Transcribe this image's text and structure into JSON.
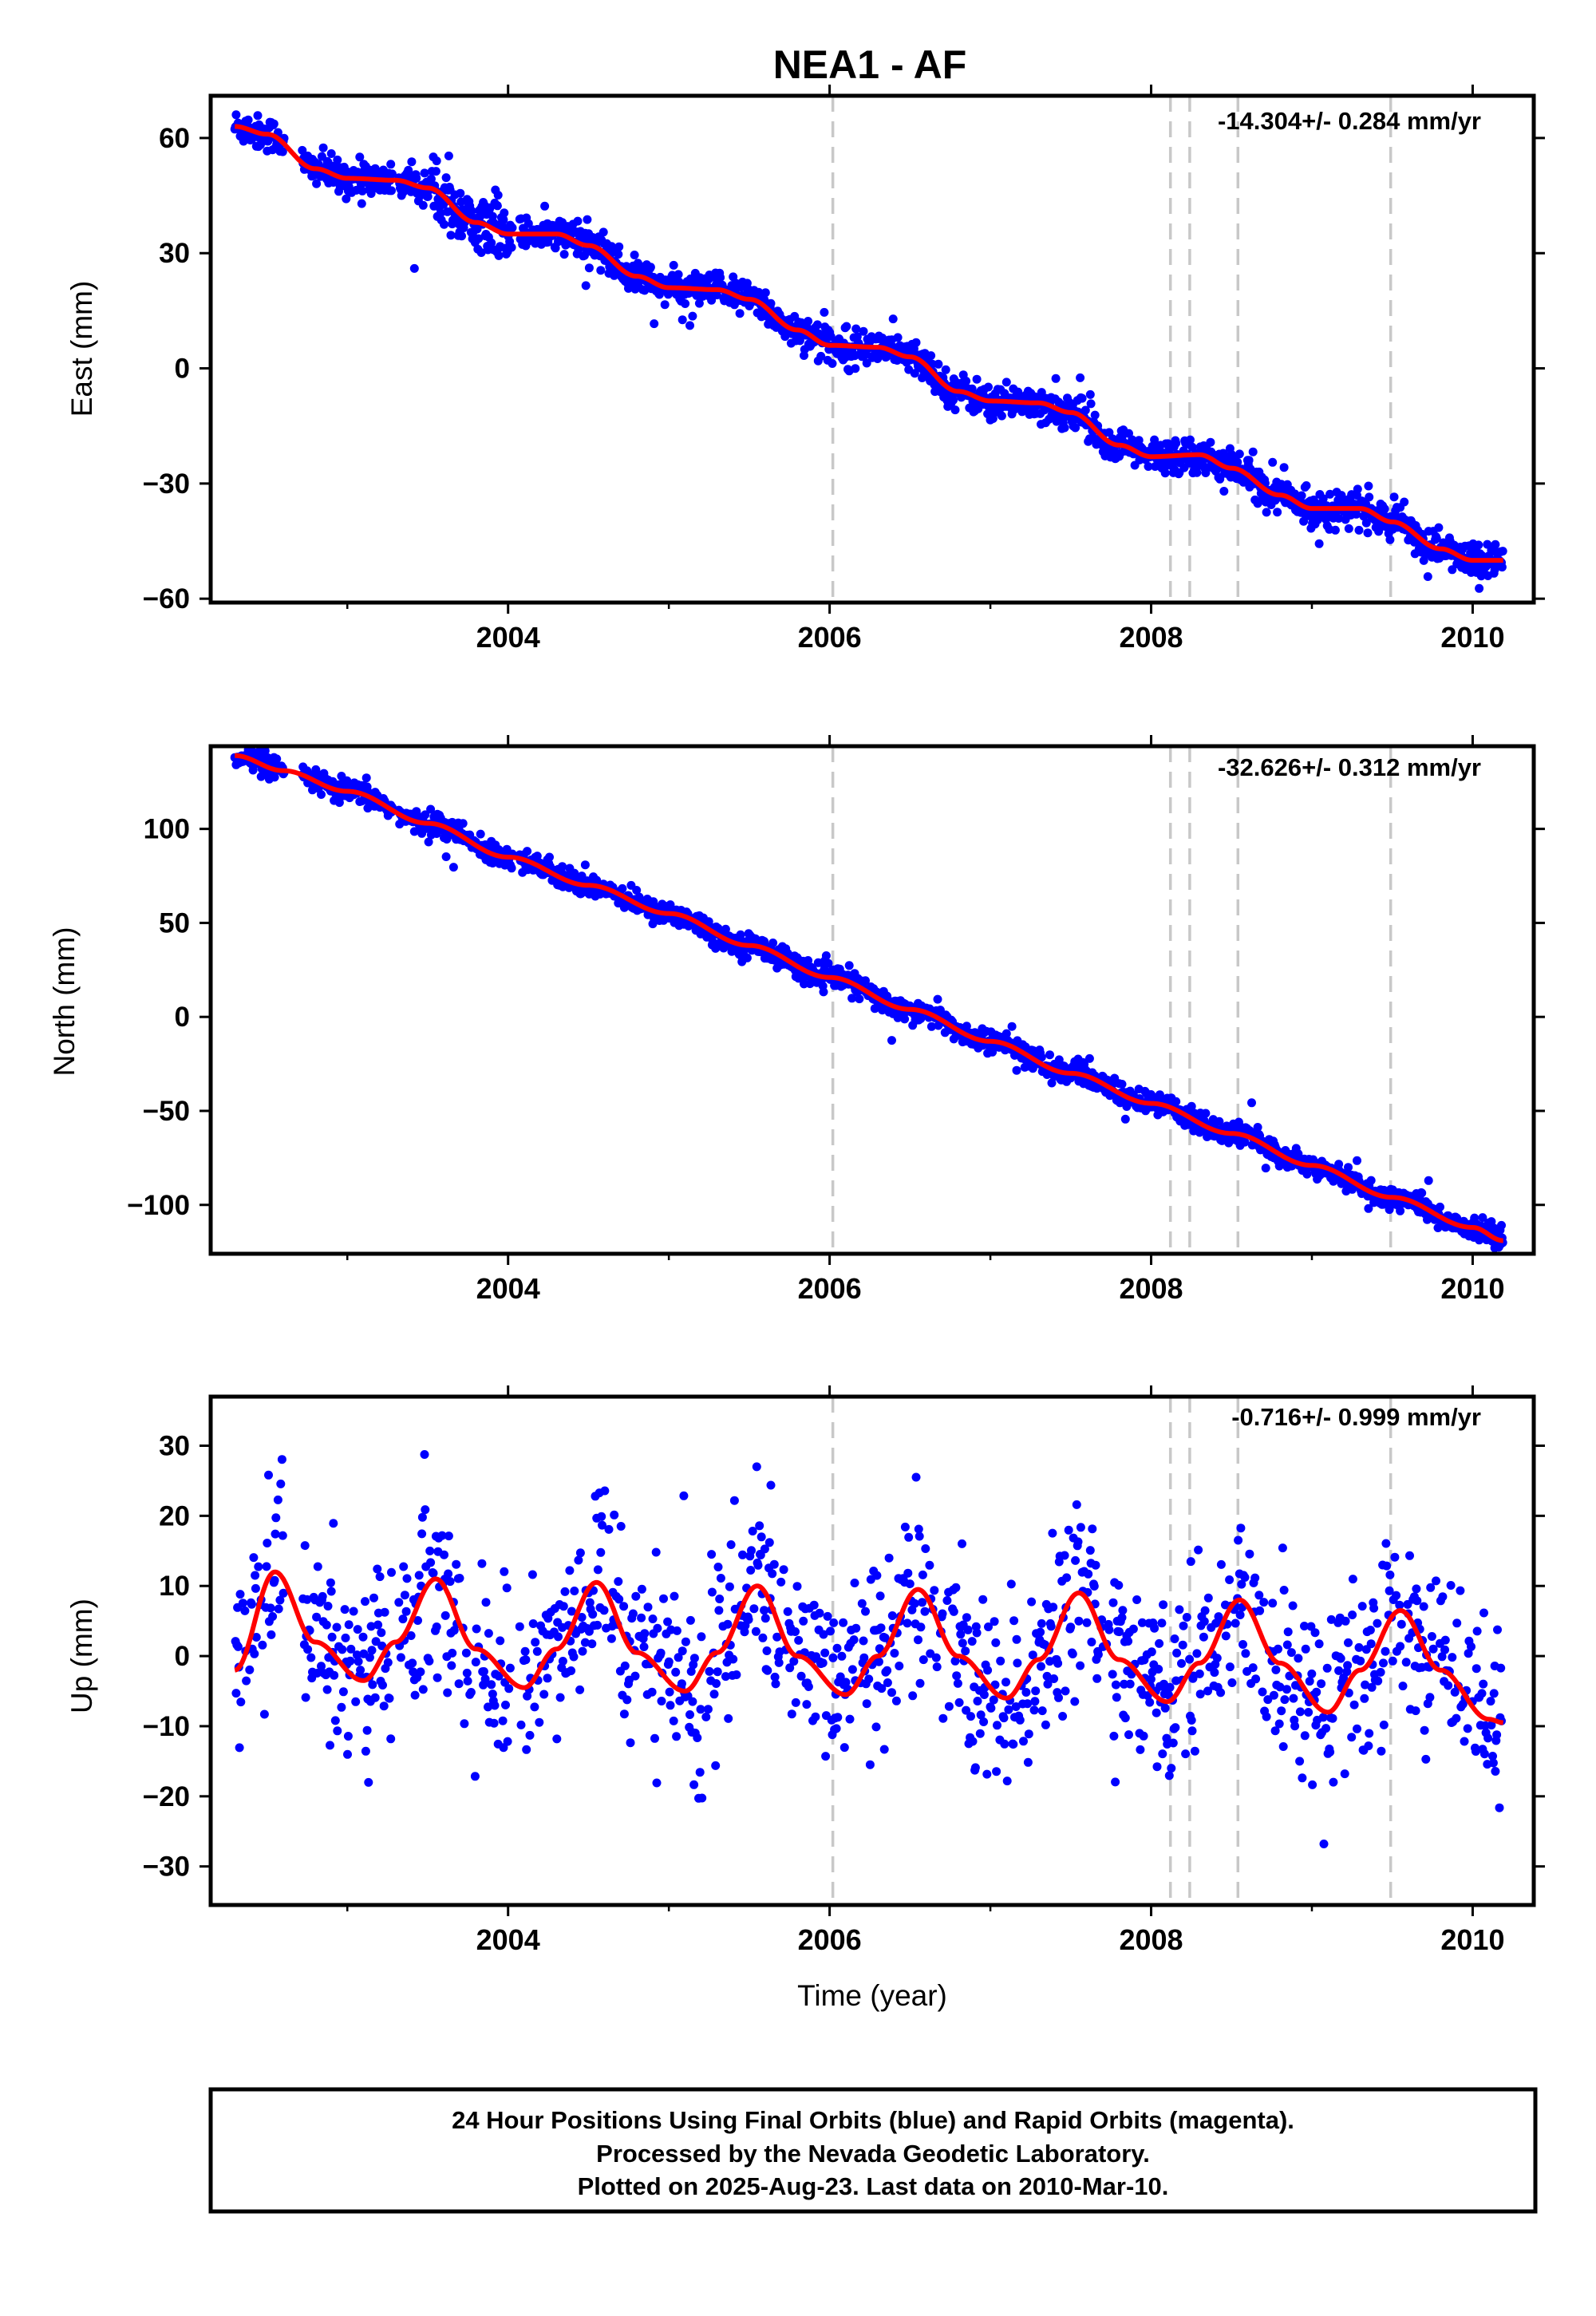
{
  "chart_data": {
    "type": "scatter",
    "title": "NEA1 - AF",
    "xlabel": "Time (year)",
    "xlim": [
      2002.15,
      2010.38
    ],
    "x_ticks": [
      "2004",
      "2006",
      "2008",
      "2010"
    ],
    "x_tick_values": [
      2004,
      2006,
      2008,
      2010
    ],
    "event_lines": [
      2006.02,
      2008.12,
      2008.24,
      2008.54,
      2009.49
    ],
    "colors": {
      "points": "#0000ff",
      "fit": "#ff0000",
      "event_lines": "#c8c8c8",
      "frame": "#000000"
    },
    "panels": [
      {
        "name": "east",
        "ylabel": "East (mm)",
        "rate_label": "-14.304+/- 0.284 mm/yr",
        "ylim": [
          -61,
          71
        ],
        "y_ticks": [
          "60",
          "30",
          "0",
          "−30",
          "−60"
        ],
        "y_tick_values": [
          60,
          30,
          0,
          -30,
          -60
        ],
        "noise": 2.2,
        "fit": {
          "x": [
            2002.3,
            2002.5,
            2002.8,
            2003.0,
            2003.3,
            2003.5,
            2003.8,
            2004.0,
            2004.3,
            2004.5,
            2004.8,
            2005.0,
            2005.3,
            2005.5,
            2005.8,
            2006.0,
            2006.3,
            2006.5,
            2006.8,
            2007.0,
            2007.3,
            2007.5,
            2007.8,
            2008.0,
            2008.3,
            2008.5,
            2008.8,
            2009.0,
            2009.3,
            2009.5,
            2009.8,
            2010.0,
            2010.19
          ],
          "y": [
            63,
            61,
            52,
            49.5,
            49,
            47,
            38,
            35,
            35,
            32,
            24,
            21,
            20.5,
            18,
            10,
            6,
            5.5,
            3,
            -6,
            -8.5,
            -9,
            -11.5,
            -20,
            -23,
            -22.5,
            -26,
            -33,
            -36.5,
            -36.5,
            -40,
            -47,
            -50,
            -50
          ]
        }
      },
      {
        "name": "north",
        "ylabel": "North (mm)",
        "rate_label": "-32.626+/- 0.312 mm/yr",
        "ylim": [
          -126,
          144
        ],
        "y_ticks": [
          "100",
          "50",
          "0",
          "−50",
          "−100"
        ],
        "y_tick_values": [
          100,
          50,
          0,
          -50,
          -100
        ],
        "noise": 3.0,
        "fit": {
          "x": [
            2002.3,
            2002.6,
            2003.0,
            2003.5,
            2004.0,
            2004.5,
            2005.0,
            2005.5,
            2006.0,
            2006.5,
            2007.0,
            2007.5,
            2008.0,
            2008.5,
            2009.0,
            2009.5,
            2010.0,
            2010.19
          ],
          "y": [
            139,
            131,
            120,
            103,
            85,
            70,
            55,
            38,
            21,
            4,
            -13,
            -30,
            -46,
            -62,
            -79,
            -96,
            -112,
            -119
          ]
        }
      },
      {
        "name": "up",
        "ylabel": "Up (mm)",
        "rate_label": "-0.716+/- 0.999 mm/yr",
        "ylim": [
          -35.5,
          37
        ],
        "y_ticks": [
          "30",
          "20",
          "10",
          "0",
          "−10",
          "−20",
          "−30"
        ],
        "y_tick_values": [
          30,
          20,
          10,
          0,
          -10,
          -20,
          -30
        ],
        "noise": 6.5,
        "fit": {
          "x": [
            2002.3,
            2002.55,
            2002.8,
            2003.1,
            2003.3,
            2003.55,
            2003.8,
            2004.1,
            2004.3,
            2004.55,
            2004.8,
            2005.1,
            2005.3,
            2005.55,
            2005.8,
            2006.1,
            2006.3,
            2006.55,
            2006.8,
            2007.1,
            2007.3,
            2007.55,
            2007.8,
            2008.1,
            2008.3,
            2008.55,
            2008.8,
            2009.1,
            2009.3,
            2009.55,
            2009.8,
            2010.1,
            2010.19
          ],
          "y": [
            -2,
            12,
            2,
            -3.5,
            2,
            11,
            1,
            -4.5,
            1,
            10.5,
            0.5,
            -5,
            0.5,
            10,
            0,
            -5.5,
            0,
            9.5,
            0,
            -6,
            -0.5,
            9,
            -0.5,
            -6.5,
            -1,
            8,
            -1,
            -8,
            -2,
            6.5,
            -2,
            -9,
            -9.5
          ]
        }
      }
    ],
    "footer_lines": [
      "24 Hour Positions Using Final Orbits (blue) and Rapid Orbits (magenta).",
      "Processed by the Nevada Geodetic Laboratory.",
      "Plotted on 2025-Aug-23. Last data on 2010-Mar-10."
    ]
  }
}
